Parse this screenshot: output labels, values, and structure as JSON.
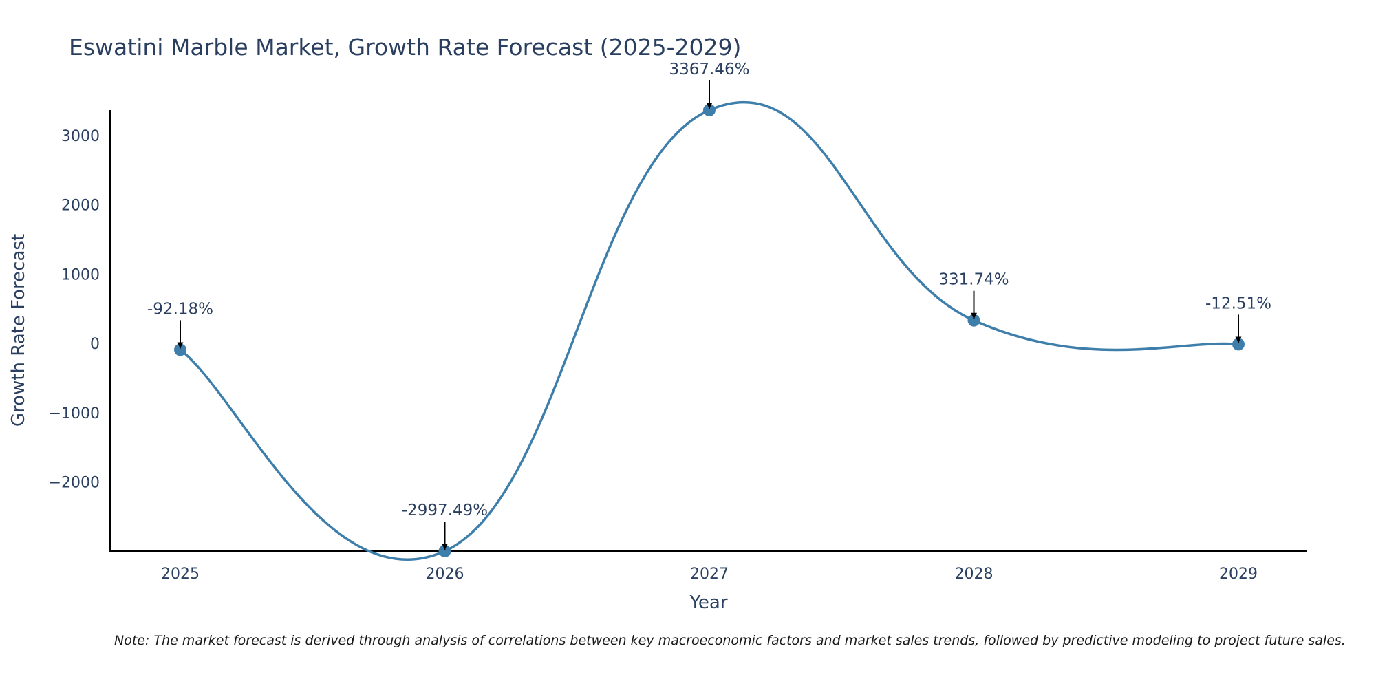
{
  "chart_data": {
    "type": "line",
    "title": "Eswatini Marble Market, Growth Rate Forecast (2025-2029)",
    "xlabel": "Year",
    "ylabel": "Growth Rate Forecast",
    "categories": [
      "2025",
      "2026",
      "2027",
      "2028",
      "2029"
    ],
    "series": [
      {
        "name": "Growth Rate Forecast",
        "values": [
          -92.18,
          -2997.49,
          3367.46,
          331.74,
          -12.51
        ],
        "labels": [
          "-92.18%",
          "-2997.49%",
          "3367.46%",
          "331.74%",
          "-12.51%"
        ]
      }
    ],
    "yticks": [
      3000,
      2000,
      1000,
      0,
      -1000,
      -2000
    ],
    "ytick_labels": [
      "3000",
      "2000",
      "1000",
      "0",
      "−1000",
      "−2000"
    ],
    "ylim": [
      -2997.49,
      3367.46
    ],
    "line_shape": "spline",
    "line_color": "#3d7eaa",
    "marker_color": "#3d7eaa",
    "grid": false
  },
  "note": "Note: The market forecast is derived through analysis of correlations between key macroeconomic factors and market sales trends, followed by predictive modeling to project future sales."
}
